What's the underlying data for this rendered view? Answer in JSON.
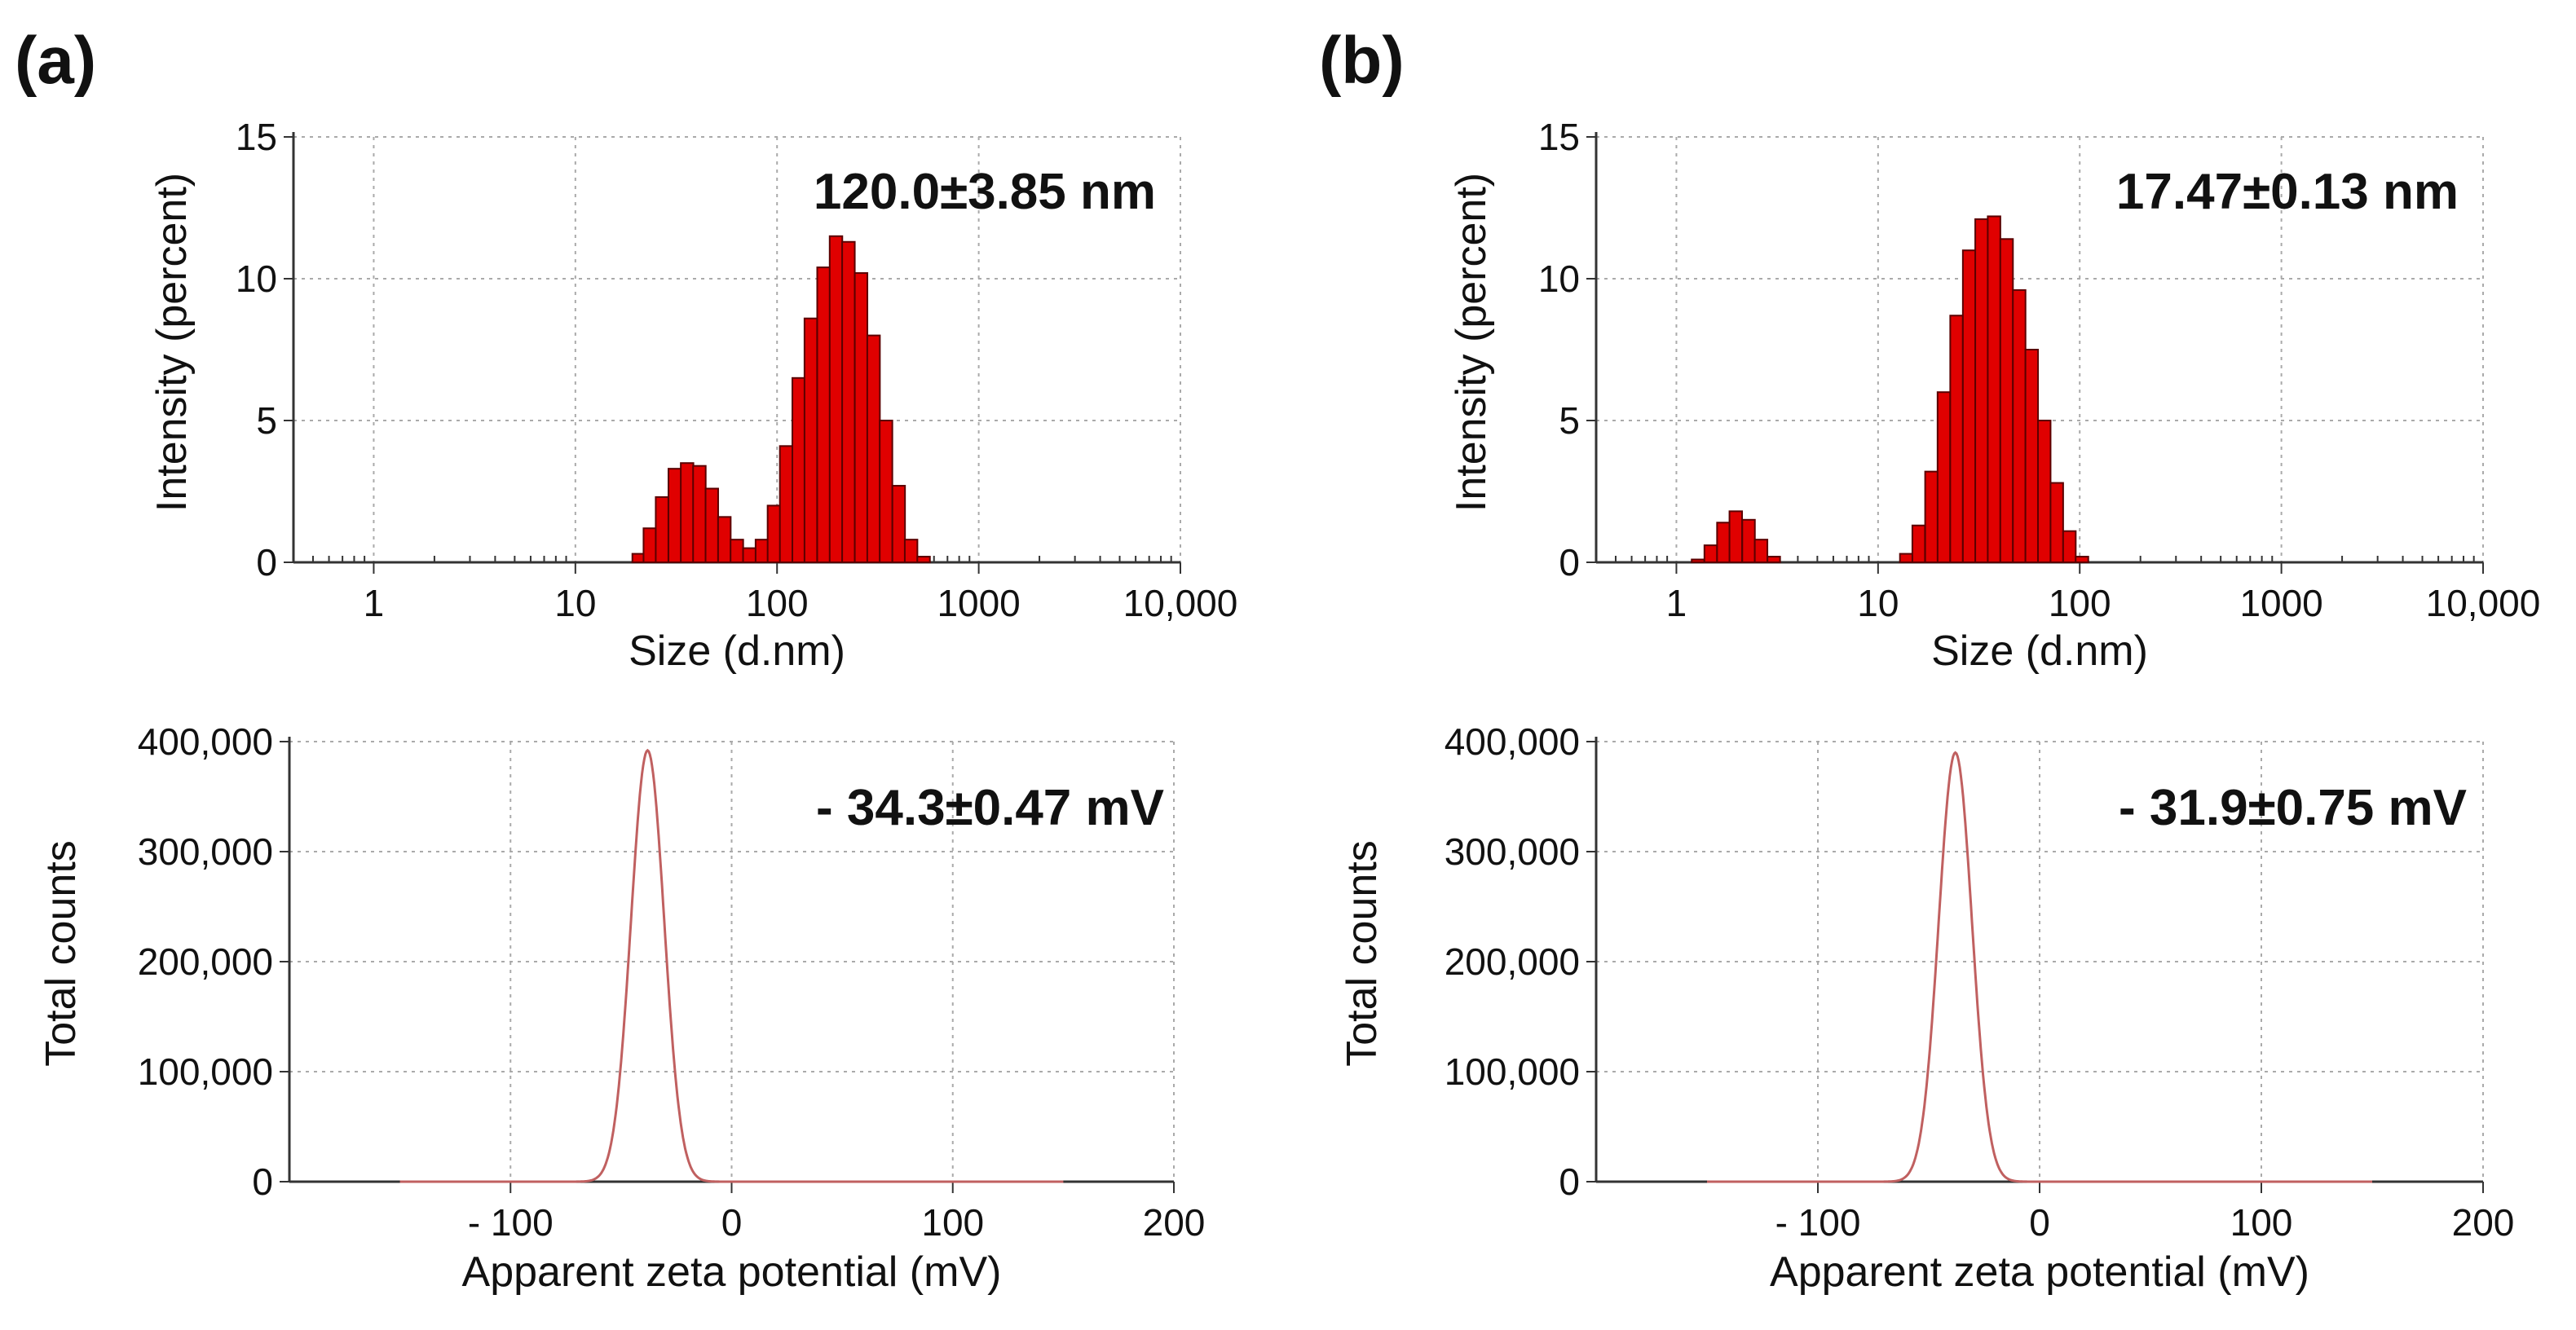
{
  "panel_labels": [
    "(a)",
    "(b)"
  ],
  "colors": {
    "bar_fill": "#e00000",
    "bar_stroke": "#5a0000",
    "zeta_line": "#c06060",
    "grid": "#aaaaaa",
    "axis": "#333333"
  },
  "chart_data": [
    {
      "id": "a-size",
      "panel": "(a)",
      "type": "bar",
      "xscale": "log",
      "title": "",
      "xlabel": "Size (d.nm)",
      "ylabel": "Intensity (percent)",
      "annotation": "120.0±3.85 nm",
      "xlim": [
        0.4,
        10000
      ],
      "ylim": [
        0,
        15
      ],
      "xticks": [
        {
          "v": 1,
          "label": "1"
        },
        {
          "v": 10,
          "label": "10"
        },
        {
          "v": 100,
          "label": "100"
        },
        {
          "v": 1000,
          "label": "1000"
        },
        {
          "v": 10000,
          "label": "10,000"
        }
      ],
      "yticks": [
        {
          "v": 0,
          "label": "0"
        },
        {
          "v": 5,
          "label": "5"
        },
        {
          "v": 10,
          "label": "10"
        },
        {
          "v": 15,
          "label": "15"
        }
      ],
      "bins": [
        [
          20.6,
          0.3
        ],
        [
          23.4,
          1.2
        ],
        [
          26.9,
          2.3
        ],
        [
          31.1,
          3.3
        ],
        [
          35.8,
          3.5
        ],
        [
          41.2,
          3.4
        ],
        [
          47.5,
          2.6
        ],
        [
          54.8,
          1.6
        ],
        [
          63.2,
          0.8
        ],
        [
          72.9,
          0.5
        ],
        [
          84.1,
          0.8
        ],
        [
          96.5,
          2.0
        ],
        [
          111,
          4.1
        ],
        [
          128,
          6.5
        ],
        [
          147,
          8.6
        ],
        [
          170,
          10.4
        ],
        [
          196,
          11.5
        ],
        [
          226,
          11.3
        ],
        [
          261,
          10.2
        ],
        [
          301,
          8.0
        ],
        [
          347,
          5.0
        ],
        [
          401,
          2.7
        ],
        [
          462,
          0.8
        ],
        [
          533,
          0.2
        ]
      ]
    },
    {
      "id": "b-size",
      "panel": "(b)",
      "type": "bar",
      "xscale": "log",
      "title": "",
      "xlabel": "Size (d.nm)",
      "ylabel": "Intensity (percent)",
      "annotation": "17.47±0.13 nm",
      "xlim": [
        0.4,
        10000
      ],
      "ylim": [
        0,
        15
      ],
      "xticks": [
        {
          "v": 1,
          "label": "1"
        },
        {
          "v": 10,
          "label": "10"
        },
        {
          "v": 100,
          "label": "100"
        },
        {
          "v": 1000,
          "label": "1000"
        },
        {
          "v": 10000,
          "label": "10,000"
        }
      ],
      "yticks": [
        {
          "v": 0,
          "label": "0"
        },
        {
          "v": 5,
          "label": "5"
        },
        {
          "v": 10,
          "label": "10"
        },
        {
          "v": 15,
          "label": "15"
        }
      ],
      "bins": [
        [
          1.28,
          0.1
        ],
        [
          1.48,
          0.6
        ],
        [
          1.71,
          1.4
        ],
        [
          1.97,
          1.8
        ],
        [
          2.28,
          1.5
        ],
        [
          2.63,
          0.8
        ],
        [
          3.04,
          0.2
        ],
        [
          13.8,
          0.3
        ],
        [
          15.9,
          1.3
        ],
        [
          18.4,
          3.2
        ],
        [
          21.2,
          6.0
        ],
        [
          24.5,
          8.7
        ],
        [
          28.3,
          11.0
        ],
        [
          32.6,
          12.1
        ],
        [
          37.6,
          12.2
        ],
        [
          43.4,
          11.4
        ],
        [
          50.1,
          9.6
        ],
        [
          57.8,
          7.5
        ],
        [
          66.7,
          5.0
        ],
        [
          77.0,
          2.8
        ],
        [
          88.9,
          1.1
        ],
        [
          102.6,
          0.2
        ]
      ]
    },
    {
      "id": "a-zeta",
      "panel": "(a)",
      "type": "line",
      "title": "",
      "xlabel": "Apparent zeta potential (mV)",
      "ylabel": "Total counts",
      "annotation": "- 34.3±0.47 mV",
      "xlim": [
        -200,
        200
      ],
      "ylim": [
        0,
        400000
      ],
      "xticks": [
        {
          "v": -100,
          "label": "- 100"
        },
        {
          "v": 0,
          "label": "0"
        },
        {
          "v": 100,
          "label": "100"
        },
        {
          "v": 200,
          "label": "200"
        }
      ],
      "yticks": [
        {
          "v": 0,
          "label": "0"
        },
        {
          "v": 100000,
          "label": "100,000"
        },
        {
          "v": 200000,
          "label": "200,000"
        },
        {
          "v": 300000,
          "label": "300,000"
        },
        {
          "v": 400000,
          "label": "400,000"
        }
      ],
      "curve_range": [
        -150,
        150
      ],
      "peak_mv": -38,
      "peak_counts": 392000,
      "peak_sigma_mv": 7.5
    },
    {
      "id": "b-zeta",
      "panel": "(b)",
      "type": "line",
      "title": "",
      "xlabel": "Apparent zeta potential (mV)",
      "ylabel": "Total counts",
      "annotation": "- 31.9±0.75 mV",
      "xlim": [
        -200,
        200
      ],
      "ylim": [
        0,
        400000
      ],
      "xticks": [
        {
          "v": -100,
          "label": "- 100"
        },
        {
          "v": 0,
          "label": "0"
        },
        {
          "v": 100,
          "label": "100"
        },
        {
          "v": 200,
          "label": "200"
        }
      ],
      "yticks": [
        {
          "v": 0,
          "label": "0"
        },
        {
          "v": 100000,
          "label": "100,000"
        },
        {
          "v": 200000,
          "label": "200,000"
        },
        {
          "v": 300000,
          "label": "300,000"
        },
        {
          "v": 400000,
          "label": "400,000"
        }
      ],
      "curve_range": [
        -150,
        150
      ],
      "peak_mv": -38,
      "peak_counts": 390000,
      "peak_sigma_mv": 7.5
    }
  ]
}
